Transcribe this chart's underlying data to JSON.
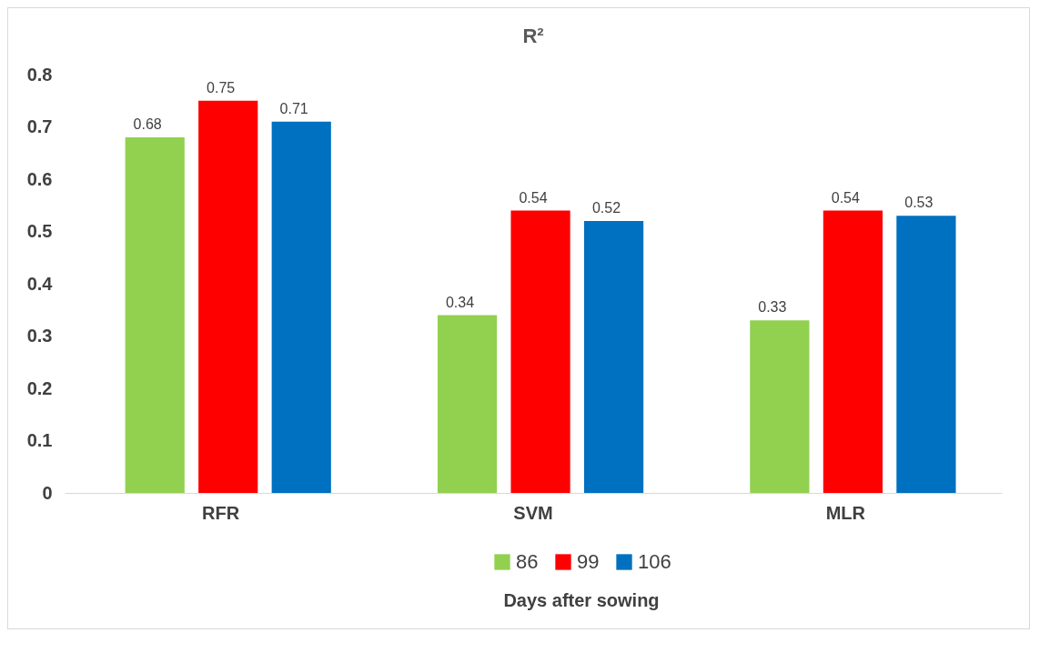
{
  "chart_data": {
    "type": "bar",
    "title": "R²",
    "legend_title": "Days after sowing",
    "categories": [
      "RFR",
      "SVM",
      "MLR"
    ],
    "series": [
      {
        "name": "86",
        "color": "#92d050",
        "values": [
          0.68,
          0.34,
          0.33
        ]
      },
      {
        "name": "99",
        "color": "#ff0000",
        "values": [
          0.75,
          0.54,
          0.54
        ]
      },
      {
        "name": "106",
        "color": "#0070c0",
        "values": [
          0.71,
          0.52,
          0.53
        ]
      }
    ],
    "ylim": [
      0,
      0.8
    ],
    "yticks": [
      0,
      0.1,
      0.2,
      0.3,
      0.4,
      0.5,
      0.6,
      0.7,
      0.8
    ],
    "grid": false,
    "legend": "bottom",
    "data_labels": true
  }
}
